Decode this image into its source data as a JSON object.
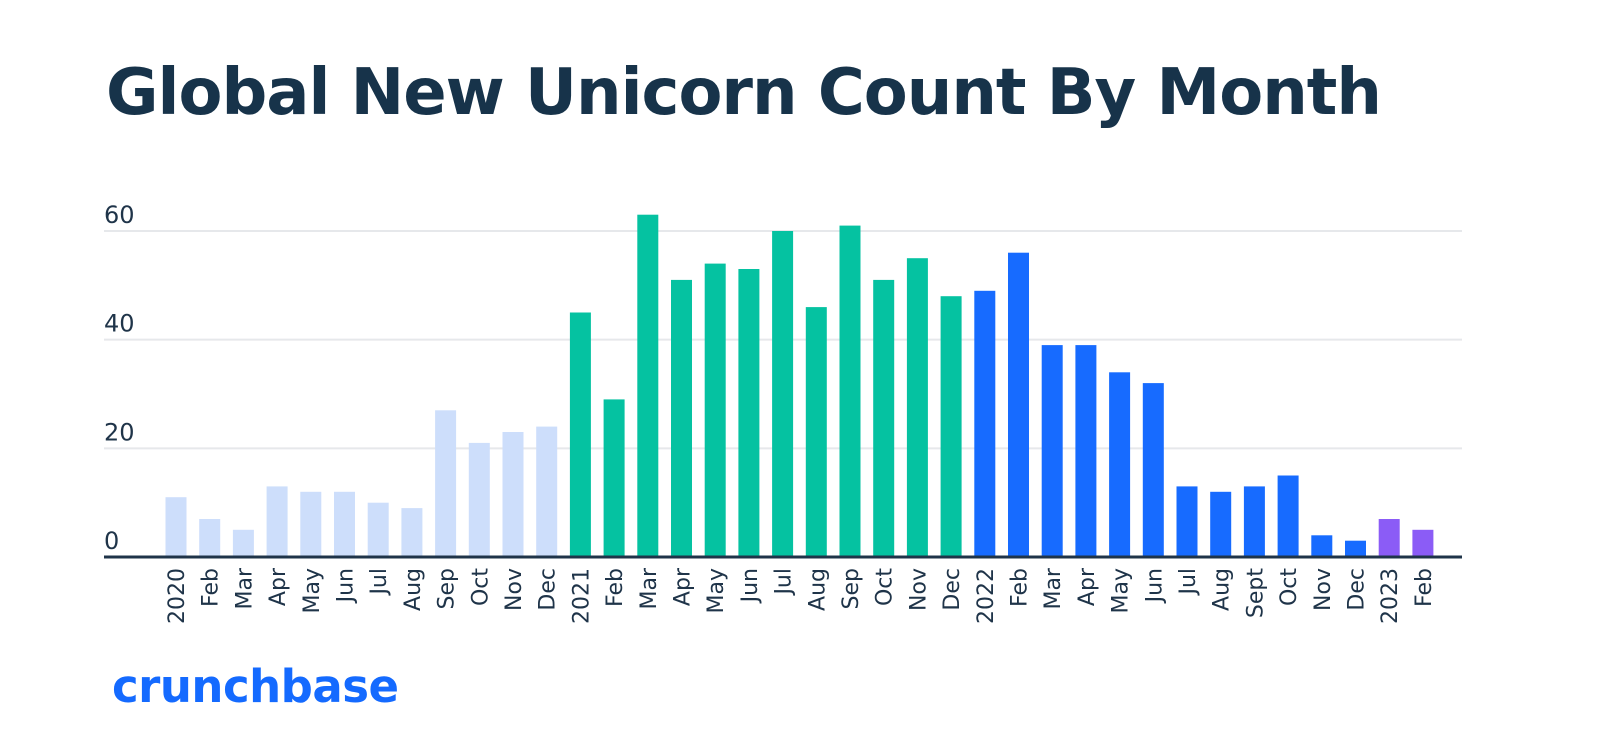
{
  "title": "Global New Unicorn Count By Month",
  "brand": {
    "logo_text": "crunchbase"
  },
  "colors": {
    "title": "#17334a",
    "text": "#1f3449",
    "gridline": "#e6e8eb",
    "baseline": "#1f3449",
    "brand": "#146aff",
    "2020": "#cddefb",
    "2021": "#05c2a1",
    "2022": "#176bff",
    "2023": "#8b5cf6"
  },
  "chart_data": {
    "type": "bar",
    "title": "Global New Unicorn Count By Month",
    "xlabel": "",
    "ylabel": "",
    "ylim": [
      0,
      60
    ],
    "yticks": [
      0,
      20,
      40,
      60
    ],
    "grid": true,
    "legend": "none",
    "categories": [
      "2020",
      "Feb",
      "Mar",
      "Apr",
      "May",
      "Jun",
      "Jul",
      "Aug",
      "Sep",
      "Oct",
      "Nov",
      "Dec",
      "2021",
      "Feb",
      "Mar",
      "Apr",
      "May",
      "Jun",
      "Jul",
      "Aug",
      "Sep",
      "Oct",
      "Nov",
      "Dec",
      "2022",
      "Feb",
      "Mar",
      "Apr",
      "May",
      "Jun",
      "Jul",
      "Aug",
      "Sept",
      "Oct",
      "Nov",
      "Dec",
      "2023",
      "Feb"
    ],
    "values": [
      11,
      7,
      5,
      13,
      12,
      12,
      10,
      9,
      27,
      21,
      23,
      24,
      45,
      29,
      63,
      51,
      54,
      53,
      60,
      46,
      61,
      51,
      55,
      48,
      49,
      56,
      39,
      39,
      34,
      32,
      13,
      12,
      13,
      15,
      4,
      3,
      7,
      5
    ],
    "year_groups": [
      "2020",
      "2020",
      "2020",
      "2020",
      "2020",
      "2020",
      "2020",
      "2020",
      "2020",
      "2020",
      "2020",
      "2020",
      "2021",
      "2021",
      "2021",
      "2021",
      "2021",
      "2021",
      "2021",
      "2021",
      "2021",
      "2021",
      "2021",
      "2021",
      "2022",
      "2022",
      "2022",
      "2022",
      "2022",
      "2022",
      "2022",
      "2022",
      "2022",
      "2022",
      "2022",
      "2022",
      "2023",
      "2023"
    ]
  }
}
